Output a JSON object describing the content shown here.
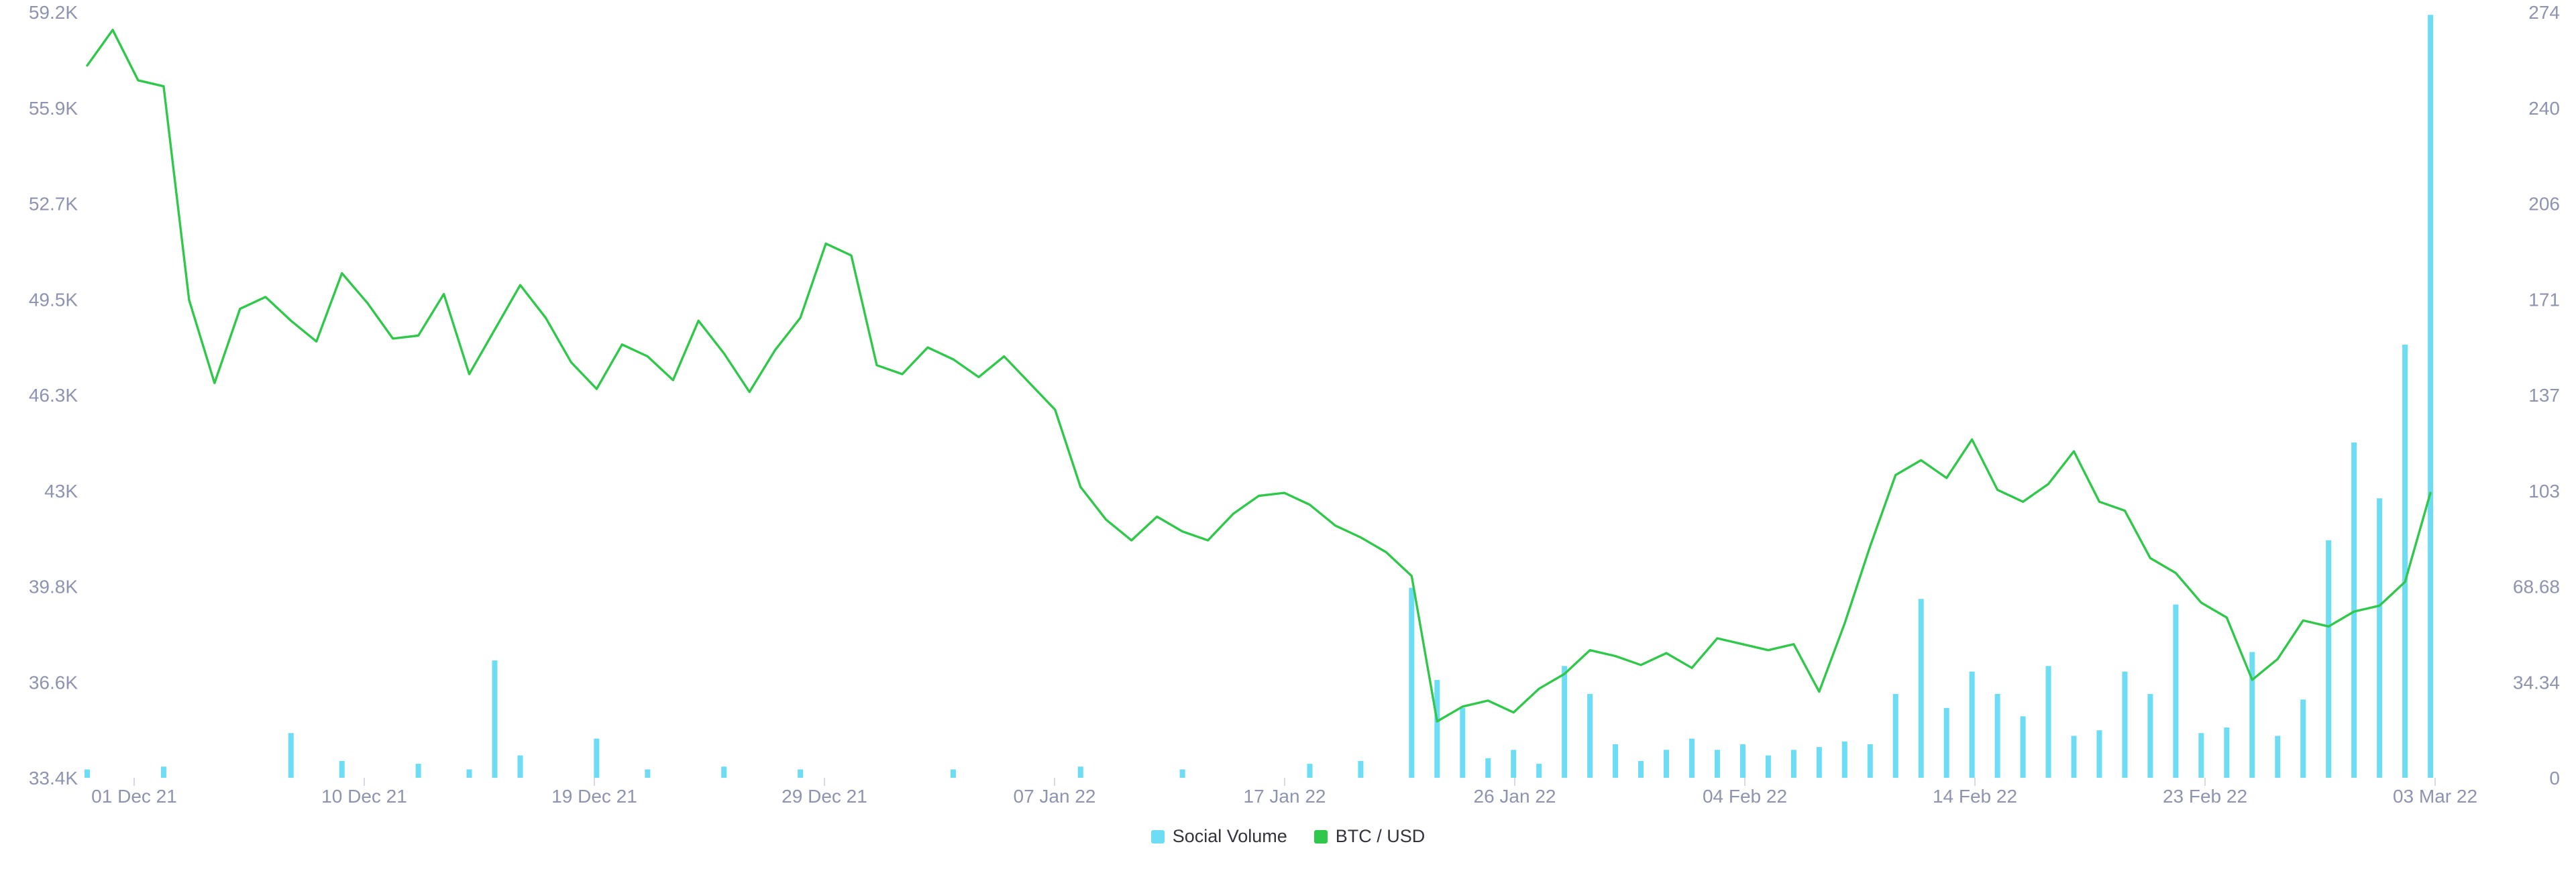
{
  "chart_data": {
    "type": "line",
    "title": "",
    "xlabel": "",
    "ylabel": "",
    "x_ticks": [
      "01 Dec 21",
      "10 Dec 21",
      "19 Dec 21",
      "29 Dec 21",
      "07 Jan 22",
      "17 Jan 22",
      "26 Jan 22",
      "04 Feb 22",
      "14 Feb 22",
      "23 Feb 22",
      "03 Mar 22"
    ],
    "y_left_ticks": [
      "59.2K",
      "55.9K",
      "52.7K",
      "49.5K",
      "46.3K",
      "43K",
      "39.8K",
      "36.6K",
      "33.4K"
    ],
    "y_right_ticks": [
      "274",
      "240",
      "206",
      "171",
      "137",
      "103",
      "68.68",
      "34.34",
      "0"
    ],
    "y_left_range": [
      33400,
      59200
    ],
    "y_right_range": [
      0,
      274
    ],
    "legend_position": "bottom-center",
    "grid": false,
    "series": [
      {
        "name": "Social Volume",
        "type": "bar",
        "axis": "right",
        "color": "#6ddcf5",
        "x": [
          "2021-11-30",
          "2021-12-03",
          "2021-12-08",
          "2021-12-10",
          "2021-12-13",
          "2021-12-15",
          "2021-12-16",
          "2021-12-17",
          "2021-12-20",
          "2021-12-22",
          "2021-12-25",
          "2021-12-28",
          "2022-01-03",
          "2022-01-08",
          "2022-01-12",
          "2022-01-17",
          "2022-01-19",
          "2022-01-21",
          "2022-01-22",
          "2022-01-23",
          "2022-01-24",
          "2022-01-25",
          "2022-01-26",
          "2022-01-27",
          "2022-01-28",
          "2022-01-29",
          "2022-01-30",
          "2022-01-31",
          "2022-02-01",
          "2022-02-02",
          "2022-02-03",
          "2022-02-04",
          "2022-02-05",
          "2022-02-06",
          "2022-02-07",
          "2022-02-08",
          "2022-02-09",
          "2022-02-10",
          "2022-02-11",
          "2022-02-12",
          "2022-02-13",
          "2022-02-14",
          "2022-02-15",
          "2022-02-16",
          "2022-02-17",
          "2022-02-18",
          "2022-02-19",
          "2022-02-20",
          "2022-02-21",
          "2022-02-22",
          "2022-02-23",
          "2022-02-24",
          "2022-02-25",
          "2022-02-26",
          "2022-02-27",
          "2022-02-28",
          "2022-03-01",
          "2022-03-02"
        ],
        "values": [
          3,
          4,
          16,
          6,
          5,
          3,
          42,
          8,
          14,
          3,
          4,
          3,
          3,
          4,
          3,
          5,
          6,
          68,
          35,
          25,
          7,
          10,
          5,
          40,
          30,
          12,
          6,
          10,
          14,
          10,
          12,
          8,
          10,
          11,
          13,
          12,
          30,
          64,
          25,
          38,
          30,
          22,
          40,
          15,
          17,
          38,
          30,
          62,
          16,
          18,
          45,
          15,
          28,
          85,
          120,
          100,
          155,
          273
        ]
      },
      {
        "name": "BTC / USD",
        "type": "line",
        "axis": "left",
        "color": "#2fc84a",
        "x": [
          "2021-11-30",
          "2021-12-01",
          "2021-12-02",
          "2021-12-03",
          "2021-12-04",
          "2021-12-05",
          "2021-12-06",
          "2021-12-07",
          "2021-12-08",
          "2021-12-09",
          "2021-12-10",
          "2021-12-11",
          "2021-12-12",
          "2021-12-13",
          "2021-12-14",
          "2021-12-15",
          "2021-12-16",
          "2021-12-17",
          "2021-12-18",
          "2021-12-19",
          "2021-12-20",
          "2021-12-21",
          "2021-12-22",
          "2021-12-23",
          "2021-12-24",
          "2021-12-25",
          "2021-12-26",
          "2021-12-27",
          "2021-12-28",
          "2021-12-29",
          "2021-12-30",
          "2021-12-31",
          "2022-01-01",
          "2022-01-02",
          "2022-01-03",
          "2022-01-04",
          "2022-01-05",
          "2022-01-06",
          "2022-01-07",
          "2022-01-08",
          "2022-01-09",
          "2022-01-10",
          "2022-01-11",
          "2022-01-12",
          "2022-01-13",
          "2022-01-14",
          "2022-01-15",
          "2022-01-16",
          "2022-01-17",
          "2022-01-18",
          "2022-01-19",
          "2022-01-20",
          "2022-01-21",
          "2022-01-22",
          "2022-01-23",
          "2022-01-24",
          "2022-01-25",
          "2022-01-26",
          "2022-01-27",
          "2022-01-28",
          "2022-01-29",
          "2022-01-30",
          "2022-01-31",
          "2022-02-01",
          "2022-02-02",
          "2022-02-03",
          "2022-02-04",
          "2022-02-05",
          "2022-02-06",
          "2022-02-07",
          "2022-02-08",
          "2022-02-09",
          "2022-02-10",
          "2022-02-11",
          "2022-02-12",
          "2022-02-13",
          "2022-02-14",
          "2022-02-15",
          "2022-02-16",
          "2022-02-17",
          "2022-02-18",
          "2022-02-19",
          "2022-02-20",
          "2022-02-21",
          "2022-02-22",
          "2022-02-23",
          "2022-02-24",
          "2022-02-25",
          "2022-02-26",
          "2022-02-27",
          "2022-02-28",
          "2022-03-01",
          "2022-03-02"
        ],
        "values": [
          57400,
          58600,
          56900,
          56700,
          49500,
          46700,
          49200,
          49600,
          48800,
          48100,
          50400,
          49400,
          48200,
          48300,
          49700,
          47000,
          48500,
          50000,
          48900,
          47400,
          46500,
          48000,
          47600,
          46800,
          48800,
          47700,
          46400,
          47800,
          48900,
          51400,
          51000,
          47300,
          47000,
          47900,
          47500,
          46900,
          47600,
          46700,
          45800,
          43200,
          42100,
          41400,
          42200,
          41700,
          41400,
          42300,
          42900,
          43000,
          42600,
          41900,
          41500,
          41000,
          40200,
          35300,
          35800,
          36000,
          35600,
          36400,
          36900,
          37700,
          37500,
          37200,
          37600,
          37100,
          38100,
          37900,
          37700,
          37900,
          36300,
          38600,
          41200,
          43600,
          44100,
          43500,
          44800,
          43100,
          42700,
          43300,
          44400,
          42700,
          42400,
          40800,
          40300,
          39300,
          38800,
          36700,
          37400,
          38700,
          38500,
          39000,
          39200,
          40000,
          43000
        ]
      }
    ]
  }
}
